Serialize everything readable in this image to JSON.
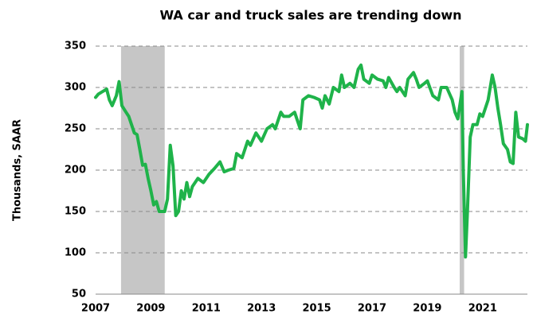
{
  "chart_data": {
    "type": "line",
    "title": "WA car and truck sales are trending down",
    "y_label": "Thousands, SAAR",
    "x": [
      2007.0,
      2007.1,
      2007.25,
      2007.4,
      2007.5,
      2007.6,
      2007.75,
      2007.85,
      2007.95,
      2008.1,
      2008.2,
      2008.3,
      2008.4,
      2008.5,
      2008.6,
      2008.7,
      2008.8,
      2008.9,
      2009.0,
      2009.1,
      2009.2,
      2009.3,
      2009.5,
      2009.6,
      2009.7,
      2009.8,
      2009.9,
      2010.0,
      2010.1,
      2010.2,
      2010.3,
      2010.4,
      2010.5,
      2010.7,
      2010.9,
      2011.1,
      2011.3,
      2011.5,
      2011.65,
      2011.8,
      2012.0,
      2012.1,
      2012.3,
      2012.5,
      2012.6,
      2012.8,
      2013.0,
      2013.2,
      2013.4,
      2013.5,
      2013.7,
      2013.8,
      2014.0,
      2014.2,
      2014.4,
      2014.5,
      2014.7,
      2014.9,
      2015.1,
      2015.2,
      2015.3,
      2015.45,
      2015.6,
      2015.8,
      2015.9,
      2016.0,
      2016.2,
      2016.35,
      2016.5,
      2016.6,
      2016.7,
      2016.9,
      2017.0,
      2017.2,
      2017.4,
      2017.5,
      2017.6,
      2017.8,
      2017.9,
      2018.0,
      2018.2,
      2018.3,
      2018.5,
      2018.6,
      2018.7,
      2018.9,
      2019.0,
      2019.2,
      2019.4,
      2019.5,
      2019.7,
      2019.9,
      2020.0,
      2020.1,
      2020.25,
      2020.3,
      2020.38,
      2020.45,
      2020.55,
      2020.65,
      2020.8,
      2020.9,
      2021.0,
      2021.2,
      2021.35,
      2021.45,
      2021.55,
      2021.65,
      2021.75,
      2021.9,
      2022.0,
      2022.1,
      2022.2,
      2022.3,
      2022.45,
      2022.55,
      2022.62
    ],
    "series": [
      {
        "name": "WA car and truck sales",
        "color": "#1fb34a",
        "values": [
          288,
          292,
          295,
          298,
          285,
          278,
          290,
          307,
          278,
          270,
          265,
          255,
          245,
          243,
          225,
          206,
          207,
          190,
          175,
          158,
          162,
          150,
          150,
          165,
          230,
          205,
          145,
          150,
          175,
          165,
          185,
          168,
          180,
          190,
          185,
          195,
          202,
          210,
          198,
          200,
          202,
          220,
          215,
          235,
          230,
          245,
          235,
          250,
          255,
          250,
          270,
          265,
          265,
          270,
          250,
          285,
          290,
          288,
          285,
          275,
          290,
          280,
          300,
          295,
          315,
          300,
          305,
          300,
          322,
          327,
          310,
          305,
          315,
          310,
          308,
          300,
          312,
          300,
          295,
          300,
          290,
          310,
          318,
          310,
          300,
          305,
          308,
          290,
          285,
          300,
          300,
          285,
          270,
          262,
          295,
          200,
          95,
          150,
          240,
          255,
          255,
          268,
          265,
          285,
          315,
          300,
          275,
          255,
          232,
          225,
          210,
          208,
          270,
          240,
          238,
          235,
          255
        ]
      }
    ],
    "shading": [
      [
        2007.92,
        2009.5
      ],
      [
        2020.17,
        2020.33
      ]
    ],
    "xlim": [
      2007,
      2022.62
    ],
    "xticks": [
      2007,
      2009,
      2011,
      2013,
      2015,
      2017,
      2019,
      2021
    ],
    "ylim": [
      50,
      350
    ],
    "yticks": [
      50,
      100,
      150,
      200,
      250,
      300,
      350
    ],
    "grid": true
  }
}
